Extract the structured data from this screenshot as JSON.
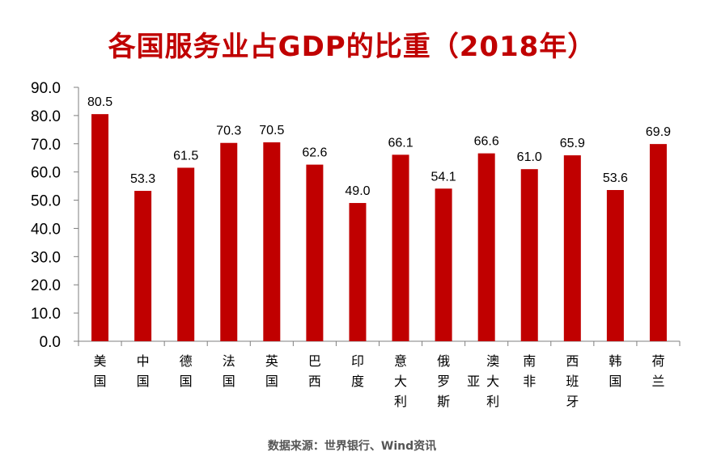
{
  "chart_data": {
    "type": "bar",
    "title": "各国服务业占GDP的比重（2018年）",
    "categories": [
      "美国",
      "中国",
      "德国",
      "法国",
      "英国",
      "巴西",
      "印度",
      "意大利",
      "俄罗斯",
      "澳大利亚",
      "南非",
      "西班牙",
      "韩国",
      "荷兰"
    ],
    "category_label_lines": [
      [
        "美",
        "国"
      ],
      [
        "中",
        "国"
      ],
      [
        "德",
        "国"
      ],
      [
        "法",
        "国"
      ],
      [
        "英",
        "国"
      ],
      [
        "巴",
        "西"
      ],
      [
        "印",
        "度"
      ],
      [
        "意",
        "大",
        "利"
      ],
      [
        "俄",
        "罗",
        "斯"
      ],
      [
        "澳",
        "大",
        "利",
        "亚"
      ],
      [
        "南",
        "非"
      ],
      [
        "西",
        "班",
        "牙"
      ],
      [
        "韩",
        "国"
      ],
      [
        "荷",
        "兰"
      ]
    ],
    "values": [
      80.5,
      53.3,
      61.5,
      70.3,
      70.5,
      62.6,
      49.0,
      66.1,
      54.1,
      66.6,
      61.0,
      65.9,
      53.6,
      69.9
    ],
    "data_labels": [
      "80.5",
      "53.3",
      "61.5",
      "70.3",
      "70.5",
      "62.6",
      "49.0",
      "66.1",
      "54.1",
      "66.6",
      "61.0",
      "65.9",
      "53.6",
      "69.9"
    ],
    "ylim": [
      0,
      90
    ],
    "y_ticks": [
      "0.0",
      "10.0",
      "20.0",
      "30.0",
      "40.0",
      "50.0",
      "60.0",
      "70.0",
      "80.0",
      "90.0"
    ],
    "xlabel": "",
    "ylabel": "",
    "grid": false,
    "legend": "none",
    "bar_color": "#c00000",
    "title_color": "#c00000"
  },
  "source": "数据来源：世界银行、Wind资讯"
}
